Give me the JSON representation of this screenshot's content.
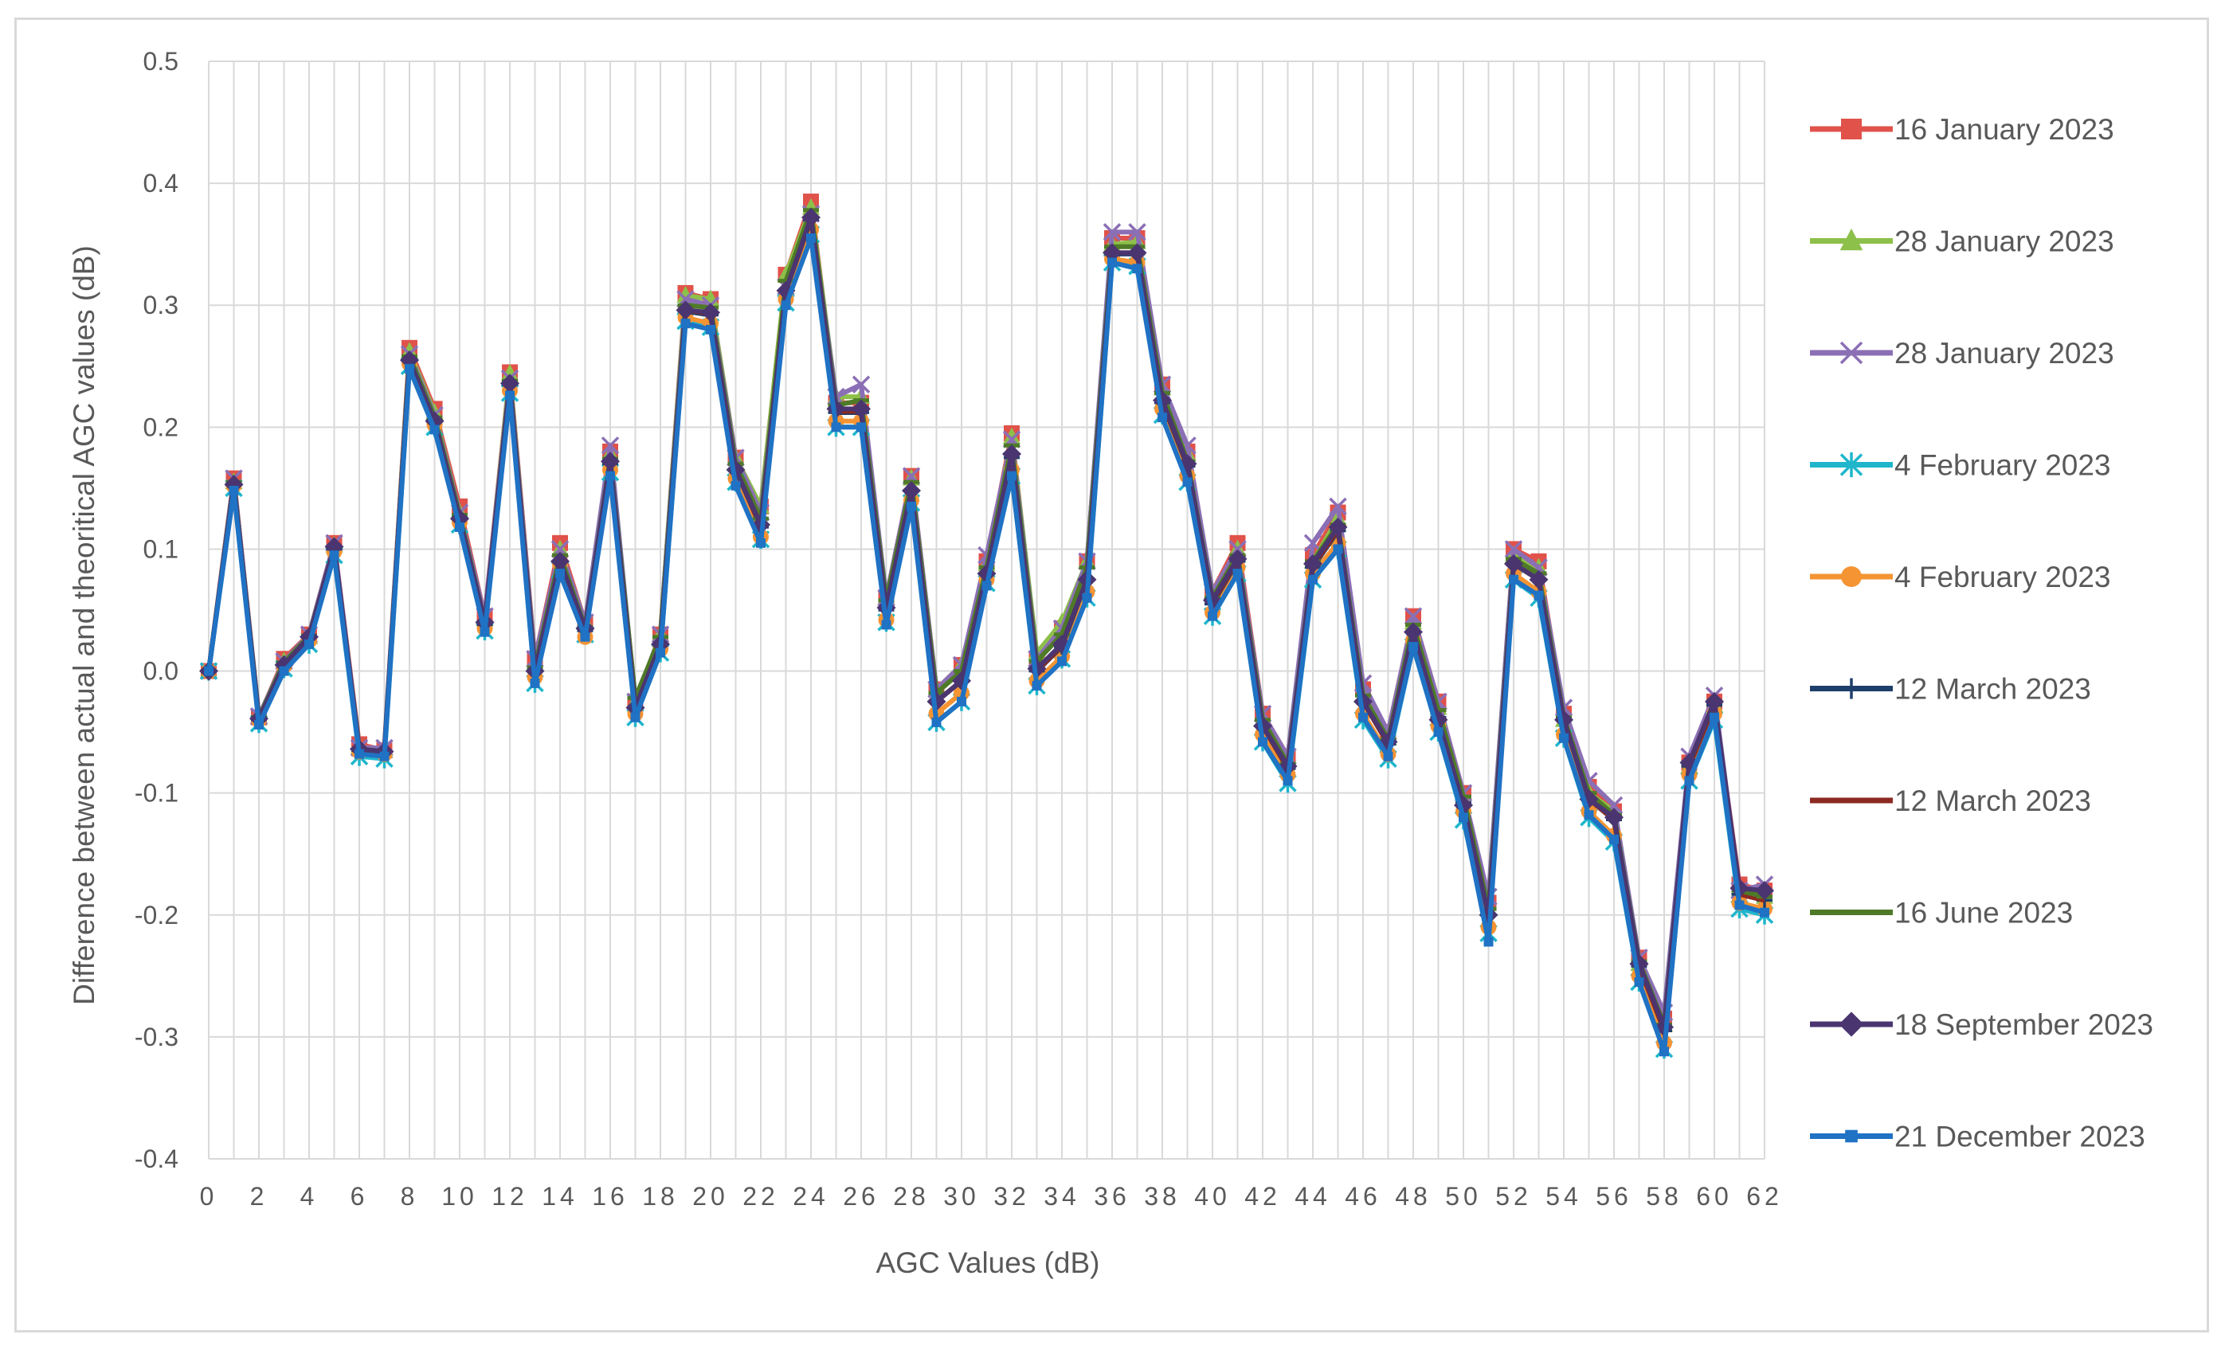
{
  "chart_data": {
    "type": "line",
    "title": "",
    "xlabel": "AGC Values (dB)",
    "ylabel": "Difference between  actual and theoritical AGC values (dB)",
    "ylim": [
      -0.4,
      0.5
    ],
    "xlim": [
      0,
      62
    ],
    "y_ticks": [
      "0.5",
      "0.4",
      "0.3",
      "0.2",
      "0.1",
      "0.0",
      "-0.1",
      "-0.2",
      "-0.3",
      "-0.4"
    ],
    "x_ticks": [
      "0",
      "2",
      "4",
      "6",
      "8",
      "10",
      "12",
      "14",
      "16",
      "18",
      "20",
      "22",
      "24",
      "26",
      "28",
      "30",
      "32",
      "34",
      "36",
      "38",
      "40",
      "42",
      "44",
      "46",
      "48",
      "50",
      "52",
      "54",
      "56",
      "58",
      "60",
      "62"
    ],
    "grid": true,
    "legend_position": "right",
    "x": [
      0,
      1,
      2,
      3,
      4,
      5,
      6,
      7,
      8,
      9,
      10,
      11,
      12,
      13,
      14,
      15,
      16,
      17,
      18,
      19,
      20,
      21,
      22,
      23,
      24,
      25,
      26,
      27,
      28,
      29,
      30,
      31,
      32,
      33,
      34,
      35,
      36,
      37,
      38,
      39,
      40,
      41,
      42,
      43,
      44,
      45,
      46,
      47,
      48,
      49,
      50,
      51,
      52,
      53,
      54,
      55,
      56,
      57,
      58,
      59,
      60,
      61,
      62
    ],
    "series": [
      {
        "name": "16 January 2023",
        "color": "#e0524a",
        "marker": "square",
        "values": [
          0.0,
          0.158,
          -0.038,
          0.01,
          0.03,
          0.105,
          -0.06,
          -0.065,
          0.265,
          0.215,
          0.135,
          0.045,
          0.245,
          0.01,
          0.105,
          0.04,
          0.18,
          -0.025,
          0.03,
          0.31,
          0.305,
          0.175,
          0.135,
          0.325,
          0.385,
          0.22,
          0.22,
          0.06,
          0.16,
          -0.015,
          0.005,
          0.09,
          0.195,
          0.01,
          0.035,
          0.09,
          0.355,
          0.355,
          0.235,
          0.18,
          0.065,
          0.105,
          -0.035,
          -0.07,
          0.095,
          0.13,
          -0.015,
          -0.05,
          0.045,
          -0.025,
          -0.1,
          -0.19,
          0.1,
          0.09,
          -0.035,
          -0.095,
          -0.115,
          -0.235,
          -0.285,
          -0.075,
          -0.025,
          -0.175,
          -0.18
        ]
      },
      {
        "name": "28 January 2023",
        "color": "#8dc04a",
        "marker": "triangle",
        "values": [
          0.0,
          0.155,
          -0.038,
          0.008,
          0.028,
          0.103,
          -0.062,
          -0.065,
          0.262,
          0.212,
          0.13,
          0.043,
          0.244,
          0.005,
          0.1,
          0.04,
          0.178,
          -0.025,
          0.03,
          0.308,
          0.305,
          0.175,
          0.135,
          0.325,
          0.38,
          0.225,
          0.225,
          0.06,
          0.158,
          -0.015,
          0.005,
          0.088,
          0.192,
          0.015,
          0.04,
          0.09,
          0.35,
          0.352,
          0.232,
          0.178,
          0.065,
          0.1,
          -0.04,
          -0.072,
          0.09,
          0.125,
          -0.02,
          -0.055,
          0.04,
          -0.03,
          -0.105,
          -0.195,
          0.095,
          0.085,
          -0.04,
          -0.1,
          -0.115,
          -0.24,
          -0.29,
          -0.078,
          -0.028,
          -0.18,
          -0.185
        ]
      },
      {
        "name": "28 January 2023",
        "color": "#8b6fb5",
        "marker": "x",
        "values": [
          0.0,
          0.158,
          -0.037,
          0.008,
          0.03,
          0.105,
          -0.063,
          -0.063,
          0.26,
          0.21,
          0.13,
          0.045,
          0.24,
          0.01,
          0.1,
          0.04,
          0.185,
          -0.025,
          0.03,
          0.305,
          0.3,
          0.175,
          0.13,
          0.315,
          0.375,
          0.225,
          0.235,
          0.06,
          0.16,
          -0.015,
          0.005,
          0.095,
          0.19,
          0.01,
          0.035,
          0.09,
          0.36,
          0.36,
          0.235,
          0.185,
          0.065,
          0.1,
          -0.035,
          -0.07,
          0.105,
          0.135,
          -0.01,
          -0.05,
          0.045,
          -0.025,
          -0.1,
          -0.185,
          0.1,
          0.085,
          -0.03,
          -0.09,
          -0.11,
          -0.235,
          -0.28,
          -0.07,
          -0.02,
          -0.18,
          -0.175
        ]
      },
      {
        "name": "4 February 2023",
        "color": "#1fb6cc",
        "marker": "asterisk",
        "values": [
          0.0,
          0.15,
          -0.043,
          0.002,
          0.022,
          0.095,
          -0.07,
          -0.072,
          0.25,
          0.2,
          0.12,
          0.033,
          0.228,
          -0.01,
          0.083,
          0.03,
          0.163,
          -0.038,
          0.015,
          0.287,
          0.282,
          0.155,
          0.108,
          0.302,
          0.358,
          0.2,
          0.2,
          0.04,
          0.138,
          -0.042,
          -0.025,
          0.072,
          0.16,
          -0.012,
          0.01,
          0.06,
          0.335,
          0.332,
          0.21,
          0.155,
          0.045,
          0.08,
          -0.058,
          -0.092,
          0.075,
          0.1,
          -0.04,
          -0.072,
          0.02,
          -0.05,
          -0.122,
          -0.215,
          0.075,
          0.06,
          -0.055,
          -0.12,
          -0.14,
          -0.255,
          -0.31,
          -0.09,
          -0.04,
          -0.195,
          -0.2
        ]
      },
      {
        "name": "4 February 2023",
        "color": "#f59433",
        "marker": "circle",
        "values": [
          0.0,
          0.152,
          -0.04,
          0.004,
          0.025,
          0.098,
          -0.066,
          -0.068,
          0.252,
          0.202,
          0.122,
          0.035,
          0.23,
          -0.005,
          0.088,
          0.028,
          0.165,
          -0.035,
          0.018,
          0.29,
          0.285,
          0.158,
          0.11,
          0.305,
          0.362,
          0.205,
          0.205,
          0.042,
          0.14,
          -0.035,
          -0.018,
          0.075,
          0.165,
          -0.008,
          0.012,
          0.065,
          0.338,
          0.335,
          0.215,
          0.16,
          0.048,
          0.085,
          -0.052,
          -0.085,
          0.08,
          0.105,
          -0.035,
          -0.068,
          0.025,
          -0.045,
          -0.115,
          -0.21,
          0.08,
          0.065,
          -0.052,
          -0.115,
          -0.135,
          -0.25,
          -0.305,
          -0.085,
          -0.035,
          -0.19,
          -0.195
        ]
      },
      {
        "name": "12 March 2023",
        "color": "#1f3f6b",
        "marker": "plus",
        "values": [
          0.0,
          0.154,
          -0.04,
          0.006,
          0.028,
          0.1,
          -0.065,
          -0.066,
          0.255,
          0.205,
          0.125,
          0.038,
          0.235,
          0.0,
          0.09,
          0.033,
          0.17,
          -0.03,
          0.022,
          0.295,
          0.292,
          0.165,
          0.118,
          0.312,
          0.37,
          0.212,
          0.212,
          0.05,
          0.148,
          -0.025,
          -0.008,
          0.08,
          0.175,
          0.0,
          0.02,
          0.075,
          0.342,
          0.342,
          0.22,
          0.168,
          0.055,
          0.09,
          -0.045,
          -0.08,
          0.085,
          0.115,
          -0.025,
          -0.06,
          0.032,
          -0.038,
          -0.108,
          -0.2,
          0.088,
          0.075,
          -0.04,
          -0.105,
          -0.122,
          -0.242,
          -0.295,
          -0.078,
          -0.028,
          -0.183,
          -0.188
        ]
      },
      {
        "name": "12 March 2023",
        "color": "#8c2a22",
        "marker": "none",
        "values": [
          0.0,
          0.154,
          -0.04,
          0.005,
          0.027,
          0.1,
          -0.065,
          -0.067,
          0.256,
          0.206,
          0.126,
          0.038,
          0.236,
          0.0,
          0.091,
          0.034,
          0.171,
          -0.03,
          0.022,
          0.296,
          0.293,
          0.166,
          0.118,
          0.312,
          0.371,
          0.213,
          0.213,
          0.05,
          0.148,
          -0.025,
          -0.008,
          0.08,
          0.176,
          0.0,
          0.021,
          0.076,
          0.343,
          0.343,
          0.221,
          0.169,
          0.056,
          0.091,
          -0.045,
          -0.08,
          0.086,
          0.116,
          -0.025,
          -0.06,
          0.032,
          -0.038,
          -0.108,
          -0.2,
          0.088,
          0.075,
          -0.04,
          -0.105,
          -0.122,
          -0.242,
          -0.295,
          -0.078,
          -0.028,
          -0.183,
          -0.188
        ]
      },
      {
        "name": "16 June 2023",
        "color": "#4f7a28",
        "marker": "dash",
        "values": [
          0.0,
          0.155,
          -0.038,
          0.007,
          0.029,
          0.102,
          -0.064,
          -0.066,
          0.258,
          0.208,
          0.128,
          0.04,
          0.238,
          0.003,
          0.095,
          0.036,
          0.174,
          -0.022,
          0.028,
          0.3,
          0.298,
          0.17,
          0.125,
          0.32,
          0.378,
          0.218,
          0.222,
          0.058,
          0.155,
          -0.018,
          0.0,
          0.085,
          0.185,
          0.008,
          0.03,
          0.085,
          0.348,
          0.348,
          0.228,
          0.172,
          0.06,
          0.095,
          -0.04,
          -0.076,
          0.09,
          0.12,
          -0.02,
          -0.056,
          0.038,
          -0.032,
          -0.103,
          -0.195,
          0.092,
          0.08,
          -0.038,
          -0.1,
          -0.118,
          -0.238,
          -0.29,
          -0.075,
          -0.025,
          -0.18,
          -0.185
        ]
      },
      {
        "name": "18 September 2023",
        "color": "#4a3570",
        "marker": "diamond",
        "values": [
          0.0,
          0.153,
          -0.039,
          0.005,
          0.028,
          0.102,
          -0.064,
          -0.066,
          0.255,
          0.205,
          0.125,
          0.04,
          0.236,
          0.0,
          0.09,
          0.035,
          0.172,
          -0.03,
          0.022,
          0.296,
          0.294,
          0.165,
          0.12,
          0.312,
          0.372,
          0.215,
          0.215,
          0.052,
          0.148,
          -0.025,
          -0.008,
          0.08,
          0.178,
          0.002,
          0.022,
          0.075,
          0.343,
          0.343,
          0.222,
          0.17,
          0.058,
          0.092,
          -0.045,
          -0.078,
          0.088,
          0.118,
          -0.025,
          -0.058,
          0.032,
          -0.04,
          -0.11,
          -0.2,
          0.088,
          0.075,
          -0.04,
          -0.105,
          -0.12,
          -0.24,
          -0.292,
          -0.075,
          -0.025,
          -0.178,
          -0.18
        ]
      },
      {
        "name": "21 December 2023",
        "color": "#1f72c4",
        "marker": "small-square",
        "values": [
          0.0,
          0.148,
          -0.044,
          0.0,
          0.022,
          0.095,
          -0.068,
          -0.07,
          0.248,
          0.198,
          0.118,
          0.032,
          0.226,
          -0.01,
          0.08,
          0.028,
          0.16,
          -0.038,
          0.015,
          0.285,
          0.28,
          0.152,
          0.105,
          0.3,
          0.355,
          0.2,
          0.2,
          0.038,
          0.135,
          -0.042,
          -0.025,
          0.07,
          0.16,
          -0.012,
          0.008,
          0.06,
          0.335,
          0.33,
          0.208,
          0.155,
          0.045,
          0.08,
          -0.058,
          -0.09,
          0.075,
          0.1,
          -0.038,
          -0.07,
          0.02,
          -0.05,
          -0.12,
          -0.222,
          0.075,
          0.062,
          -0.055,
          -0.118,
          -0.138,
          -0.255,
          -0.312,
          -0.09,
          -0.038,
          -0.192,
          -0.198
        ]
      }
    ]
  }
}
